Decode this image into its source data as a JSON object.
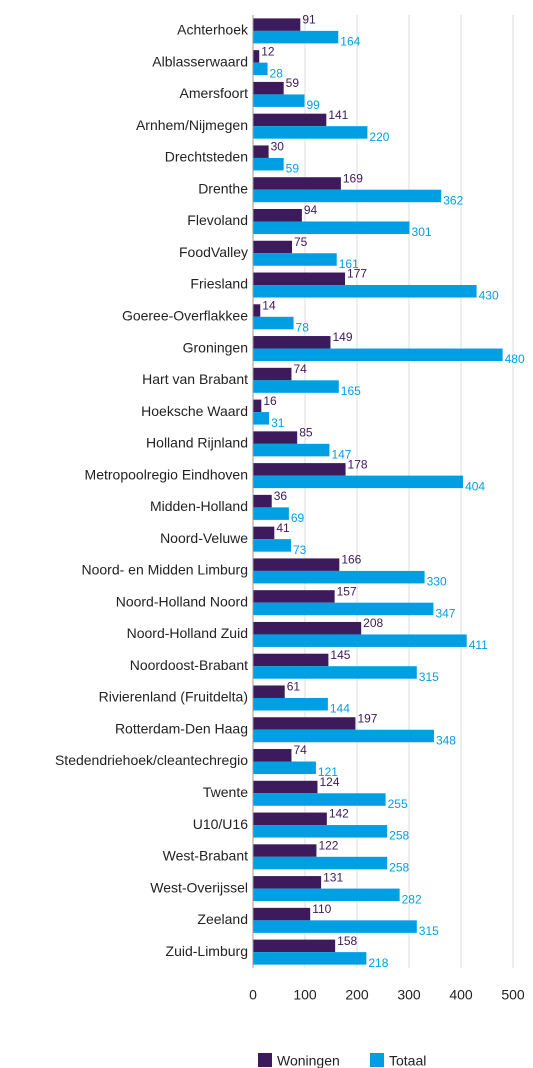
{
  "chart_data": {
    "type": "bar",
    "orientation": "horizontal",
    "categories": [
      "Achterhoek",
      "Alblasserwaard",
      "Amersfoort",
      "Arnhem/Nijmegen",
      "Drechtsteden",
      "Drenthe",
      "Flevoland",
      "FoodValley",
      "Friesland",
      "Goeree-Overflakkee",
      "Groningen",
      "Hart van Brabant",
      "Hoeksche Waard",
      "Holland Rijnland",
      "Metropoolregio Eindhoven",
      "Midden-Holland",
      "Noord-Veluwe",
      "Noord- en Midden Limburg",
      "Noord-Holland Noord",
      "Noord-Holland Zuid",
      "Noordoost-Brabant",
      "Rivierenland (Fruitdelta)",
      "Rotterdam-Den Haag",
      "Stedendriehoek/cleantechregio",
      "Twente",
      "U10/U16",
      "West-Brabant",
      "West-Overijssel",
      "Zeeland",
      "Zuid-Limburg"
    ],
    "series": [
      {
        "name": "Woningen",
        "color": "#3d1a5b",
        "values": [
          91,
          12,
          59,
          141,
          30,
          169,
          94,
          75,
          177,
          14,
          149,
          74,
          16,
          85,
          178,
          36,
          41,
          166,
          157,
          208,
          145,
          61,
          197,
          74,
          124,
          142,
          122,
          131,
          110,
          158
        ]
      },
      {
        "name": "Totaal",
        "color": "#009fe3",
        "values": [
          164,
          28,
          99,
          220,
          59,
          362,
          301,
          161,
          430,
          78,
          480,
          165,
          31,
          147,
          404,
          69,
          73,
          330,
          347,
          411,
          315,
          144,
          348,
          121,
          255,
          258,
          258,
          282,
          315,
          218
        ]
      }
    ],
    "xlim": [
      0,
      500
    ],
    "xticks": [
      0,
      100,
      200,
      300,
      400,
      500
    ],
    "grid": true,
    "legend": "bottom"
  }
}
